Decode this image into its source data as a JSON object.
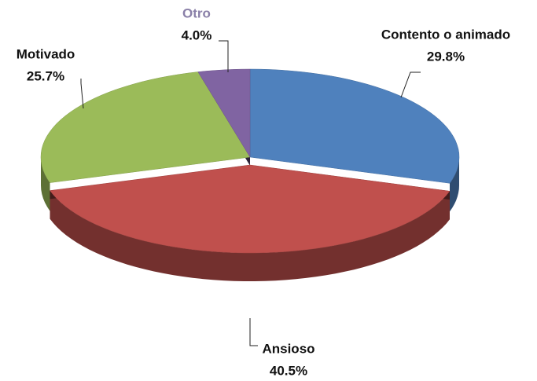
{
  "chart_data": {
    "type": "pie",
    "categories": [
      "Contento o animado",
      "Ansioso",
      "Motivado",
      "Otro"
    ],
    "values": [
      29.8,
      40.5,
      25.7,
      4.0
    ],
    "value_labels": [
      "29.8%",
      "40.5%",
      "25.7%",
      "4.0%"
    ],
    "colors": [
      "#4f81bd",
      "#c0504d",
      "#9bbb59",
      "#8064a2"
    ]
  }
}
